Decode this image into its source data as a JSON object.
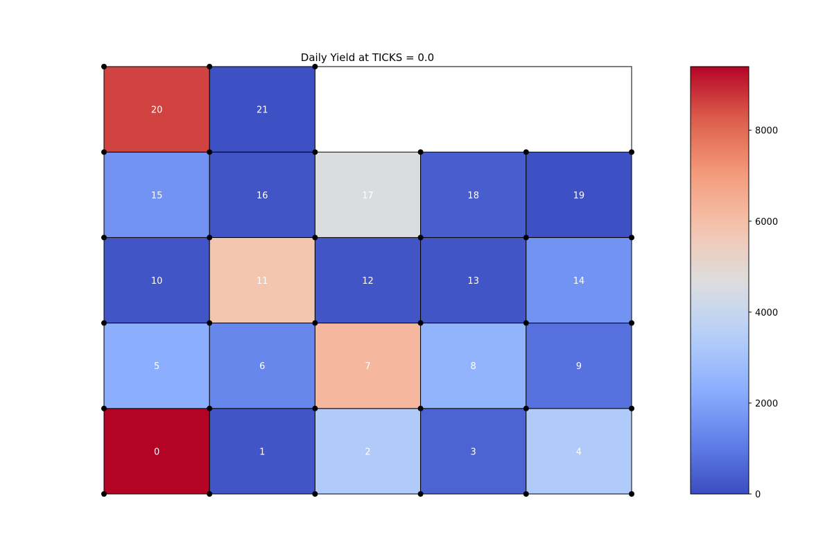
{
  "chart_data": {
    "type": "heatmap",
    "title": "Daily Yield at TICKS = 0.0",
    "grid_columns": 5,
    "grid_rows": 5,
    "cells": [
      {
        "id": "0",
        "col": 0,
        "row": 0,
        "value": 9400
      },
      {
        "id": "1",
        "col": 1,
        "row": 0,
        "value": 200
      },
      {
        "id": "2",
        "col": 2,
        "row": 0,
        "value": 3300
      },
      {
        "id": "3",
        "col": 3,
        "row": 0,
        "value": 500
      },
      {
        "id": "4",
        "col": 4,
        "row": 0,
        "value": 3300
      },
      {
        "id": "5",
        "col": 0,
        "row": 1,
        "value": 2300
      },
      {
        "id": "6",
        "col": 1,
        "row": 1,
        "value": 1300
      },
      {
        "id": "7",
        "col": 2,
        "row": 1,
        "value": 6200
      },
      {
        "id": "8",
        "col": 3,
        "row": 1,
        "value": 2500
      },
      {
        "id": "9",
        "col": 4,
        "row": 1,
        "value": 800
      },
      {
        "id": "10",
        "col": 0,
        "row": 2,
        "value": 200
      },
      {
        "id": "11",
        "col": 1,
        "row": 2,
        "value": 5800
      },
      {
        "id": "12",
        "col": 2,
        "row": 2,
        "value": 200
      },
      {
        "id": "13",
        "col": 3,
        "row": 2,
        "value": 200
      },
      {
        "id": "14",
        "col": 4,
        "row": 2,
        "value": 1600
      },
      {
        "id": "15",
        "col": 0,
        "row": 3,
        "value": 1600
      },
      {
        "id": "16",
        "col": 1,
        "row": 3,
        "value": 200
      },
      {
        "id": "17",
        "col": 2,
        "row": 3,
        "value": 4600
      },
      {
        "id": "18",
        "col": 3,
        "row": 3,
        "value": 400
      },
      {
        "id": "19",
        "col": 4,
        "row": 3,
        "value": 100
      },
      {
        "id": "20",
        "col": 0,
        "row": 4,
        "value": 8600
      },
      {
        "id": "21",
        "col": 1,
        "row": 4,
        "value": 100
      }
    ],
    "colorbar": {
      "colormap": "coolwarm",
      "range": [
        0,
        9400
      ],
      "ticks": [
        0,
        2000,
        4000,
        6000,
        8000
      ],
      "tick_labels": [
        "0",
        "2000",
        "4000",
        "6000",
        "8000"
      ]
    },
    "xlabel": "",
    "ylabel": "",
    "grid": false,
    "node_markers": true
  }
}
